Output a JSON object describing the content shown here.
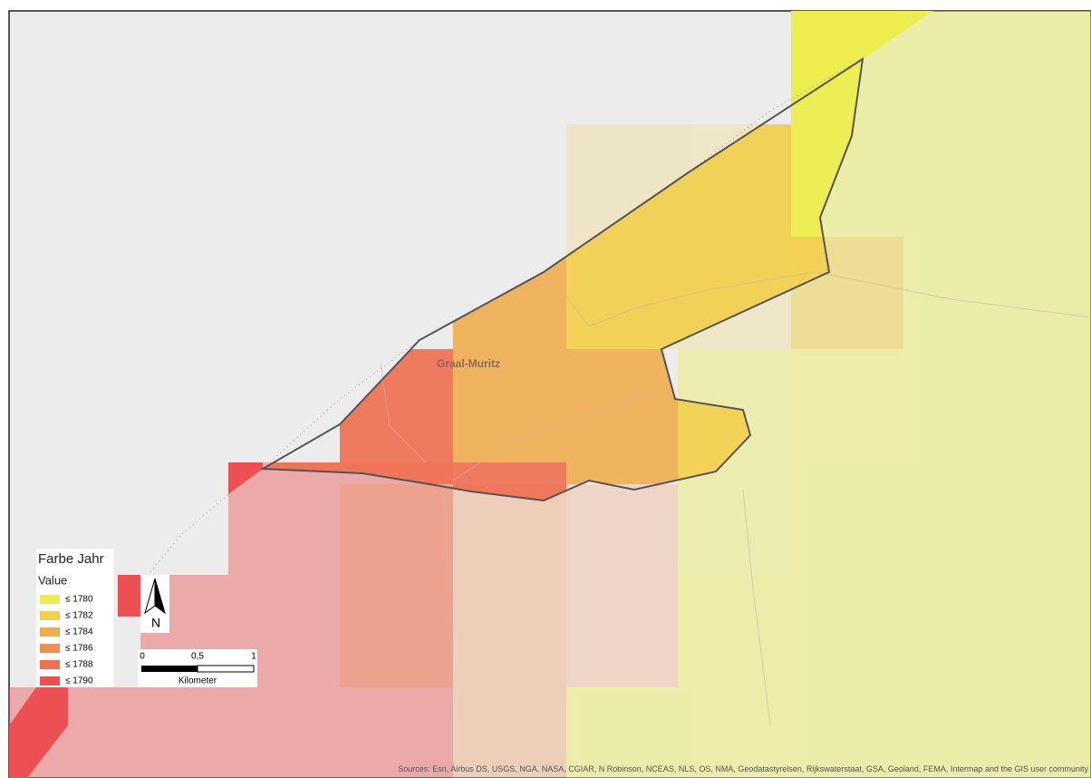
{
  "map": {
    "place_label": "Graal-Muritz",
    "attribution": "Sources: Esri, Airbus DS, USGS, NGA, NASA, CGIAR, N Robinson, NCEAS, NLS, OS, NMA, Geodatastyrelsen, Rijkswaterstaat, GSA, Geoland, FEMA, Intermap and the GIS user community"
  },
  "legend": {
    "title": "Farbe Jahr",
    "subtitle": "Value",
    "items": [
      {
        "label": "≤ 1780",
        "color": "#eded4f"
      },
      {
        "label": "≤ 1782",
        "color": "#f2cf4f"
      },
      {
        "label": "≤ 1784",
        "color": "#eeae4f"
      },
      {
        "label": "≤ 1786",
        "color": "#ee9150"
      },
      {
        "label": "≤ 1788",
        "color": "#ee7150"
      },
      {
        "label": "≤ 1790",
        "color": "#ec5052"
      }
    ]
  },
  "north_arrow": {
    "label": "N"
  },
  "scale_bar": {
    "labels": [
      "0",
      "0,5",
      "1"
    ],
    "unit": "Kilometer"
  }
}
